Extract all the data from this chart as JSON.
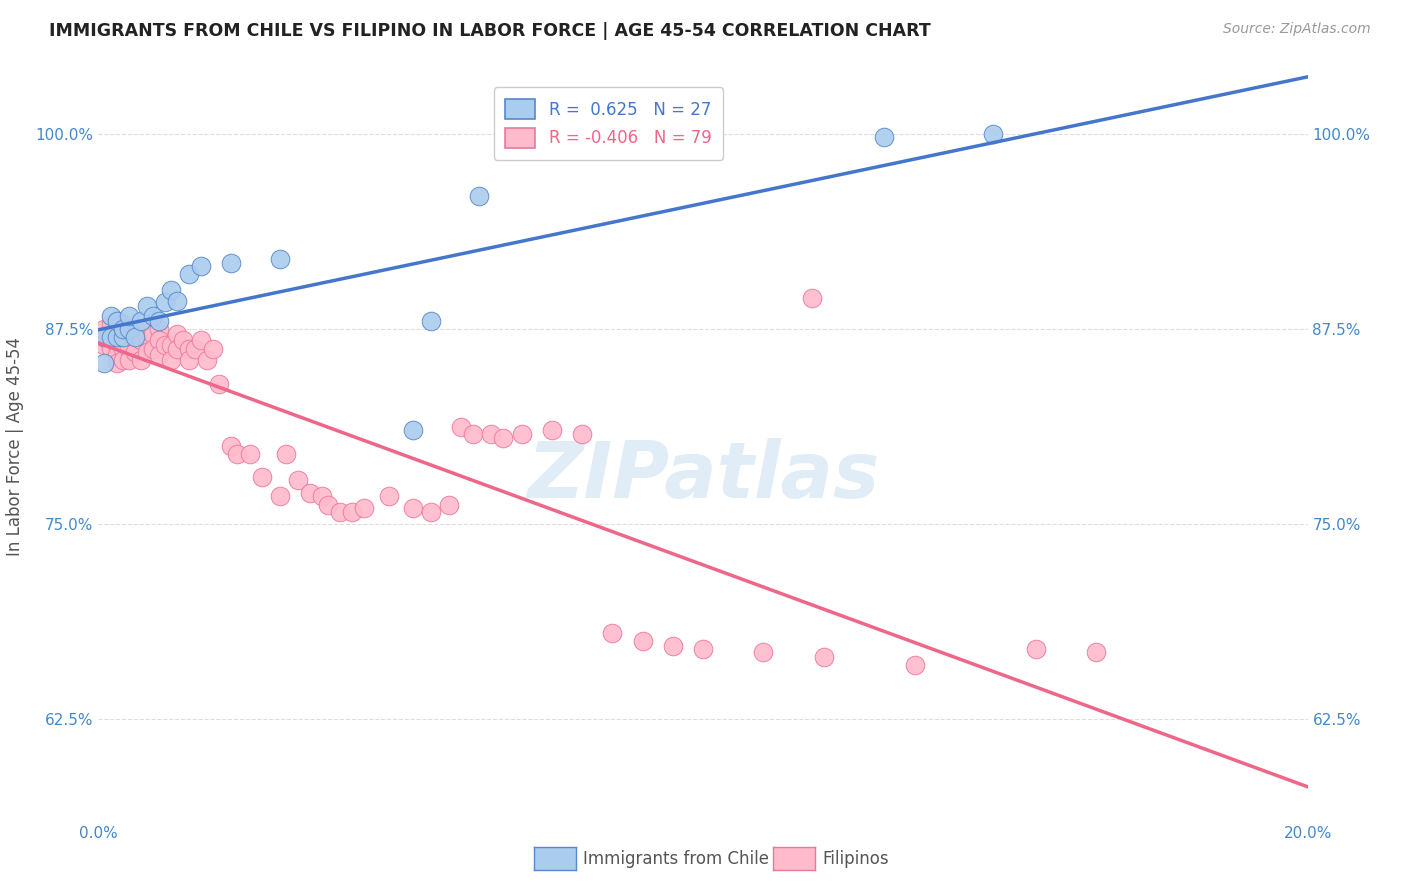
{
  "title": "IMMIGRANTS FROM CHILE VS FILIPINO IN LABOR FORCE | AGE 45-54 CORRELATION CHART",
  "source": "Source: ZipAtlas.com",
  "ylabel": "In Labor Force | Age 45-54",
  "xlim": [
    0.0,
    0.2
  ],
  "ylim": [
    0.56,
    1.04
  ],
  "xticks": [
    0.0,
    0.04,
    0.08,
    0.12,
    0.16,
    0.2
  ],
  "xticklabels": [
    "0.0%",
    "",
    "",
    "",
    "",
    "20.0%"
  ],
  "yticks": [
    0.625,
    0.75,
    0.875,
    1.0
  ],
  "yticklabels": [
    "62.5%",
    "75.0%",
    "87.5%",
    "100.0%"
  ],
  "r_chile": 0.625,
  "n_chile": 27,
  "r_filipino": -0.406,
  "n_filipino": 79,
  "legend_label_chile": "Immigrants from Chile",
  "legend_label_filipino": "Filipinos",
  "chile_color": "#aaccee",
  "chile_edge_color": "#5588cc",
  "chile_line_color": "#4477cc",
  "filipino_color": "#ffbbcc",
  "filipino_edge_color": "#ee7799",
  "filipino_line_color": "#ee6688",
  "watermark": "ZIPatlas",
  "watermark_color": "#c8ddf0",
  "background_color": "#ffffff",
  "grid_color": "#dddddd",
  "title_color": "#222222",
  "axis_label_color": "#555555",
  "tick_color": "#4488cc",
  "source_color": "#999999",
  "chile_scatter_x": [
    0.001,
    0.001,
    0.002,
    0.002,
    0.003,
    0.003,
    0.004,
    0.004,
    0.005,
    0.005,
    0.006,
    0.007,
    0.008,
    0.009,
    0.01,
    0.011,
    0.012,
    0.013,
    0.015,
    0.017,
    0.022,
    0.03,
    0.052,
    0.055,
    0.063,
    0.13,
    0.148
  ],
  "chile_scatter_y": [
    0.853,
    0.87,
    0.87,
    0.883,
    0.87,
    0.88,
    0.87,
    0.875,
    0.875,
    0.883,
    0.87,
    0.88,
    0.89,
    0.883,
    0.88,
    0.892,
    0.9,
    0.893,
    0.91,
    0.915,
    0.917,
    0.92,
    0.81,
    0.88,
    0.96,
    0.998,
    1.0
  ],
  "filipino_scatter_x": [
    0.001,
    0.001,
    0.001,
    0.002,
    0.002,
    0.002,
    0.003,
    0.003,
    0.003,
    0.003,
    0.003,
    0.004,
    0.004,
    0.004,
    0.004,
    0.005,
    0.005,
    0.005,
    0.005,
    0.006,
    0.006,
    0.006,
    0.007,
    0.007,
    0.007,
    0.008,
    0.008,
    0.009,
    0.009,
    0.01,
    0.01,
    0.01,
    0.011,
    0.012,
    0.012,
    0.013,
    0.013,
    0.014,
    0.015,
    0.015,
    0.016,
    0.017,
    0.018,
    0.019,
    0.02,
    0.022,
    0.023,
    0.025,
    0.027,
    0.03,
    0.031,
    0.033,
    0.035,
    0.037,
    0.038,
    0.04,
    0.042,
    0.044,
    0.048,
    0.052,
    0.055,
    0.058,
    0.06,
    0.062,
    0.065,
    0.067,
    0.07,
    0.075,
    0.08,
    0.085,
    0.09,
    0.095,
    0.1,
    0.11,
    0.12,
    0.135,
    0.155,
    0.165,
    0.118
  ],
  "filipino_scatter_y": [
    0.875,
    0.87,
    0.865,
    0.878,
    0.87,
    0.863,
    0.88,
    0.872,
    0.865,
    0.858,
    0.853,
    0.878,
    0.87,
    0.862,
    0.855,
    0.875,
    0.868,
    0.862,
    0.855,
    0.875,
    0.868,
    0.86,
    0.875,
    0.868,
    0.855,
    0.87,
    0.86,
    0.872,
    0.862,
    0.875,
    0.868,
    0.858,
    0.865,
    0.865,
    0.855,
    0.872,
    0.862,
    0.868,
    0.862,
    0.855,
    0.862,
    0.868,
    0.855,
    0.862,
    0.84,
    0.8,
    0.795,
    0.795,
    0.78,
    0.768,
    0.795,
    0.778,
    0.77,
    0.768,
    0.762,
    0.758,
    0.758,
    0.76,
    0.768,
    0.76,
    0.758,
    0.762,
    0.812,
    0.808,
    0.808,
    0.805,
    0.808,
    0.81,
    0.808,
    0.68,
    0.675,
    0.672,
    0.67,
    0.668,
    0.665,
    0.66,
    0.67,
    0.668,
    0.895
  ]
}
